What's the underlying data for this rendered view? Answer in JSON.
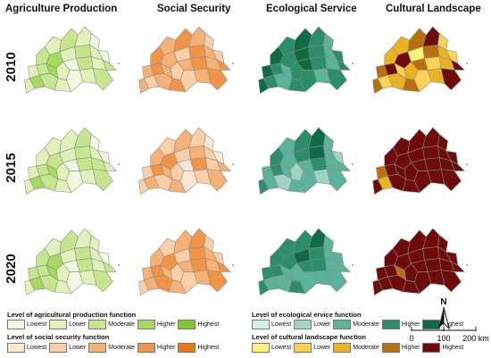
{
  "columns": [
    {
      "title": "Agriculture  Production",
      "key": "agri"
    },
    {
      "title": "Social Security",
      "key": "social"
    },
    {
      "title": "Ecological Service",
      "key": "eco"
    },
    {
      "title": "Cultural Landscape",
      "key": "cult"
    }
  ],
  "years": [
    "2010",
    "2015",
    "2020"
  ],
  "palettes": {
    "agri": [
      "#f2f8df",
      "#e2f1bb",
      "#c6e58c",
      "#a7d85f",
      "#84c630"
    ],
    "social": [
      "#fde9d2",
      "#f9cfa7",
      "#f5b176",
      "#f19447",
      "#ec7514"
    ],
    "eco": [
      "#d7efe9",
      "#9fd3c5",
      "#5bb39b",
      "#2b8d6a",
      "#0f6b43"
    ],
    "cult": [
      "#fff27a",
      "#fad255",
      "#e9b322",
      "#b8700f",
      "#6e0b0b"
    ]
  },
  "legends": [
    {
      "title": "Level of agricultural production function",
      "key": "agri",
      "labels": [
        "Lowest",
        "Lower",
        "Moderate",
        "Higher",
        "Highest"
      ]
    },
    {
      "title": "Level of ecological ervice function",
      "key": "eco",
      "labels": [
        "Lowest",
        "Lower",
        "Moderate",
        "Higher",
        "Highest"
      ]
    },
    {
      "title": "Level of social security function",
      "key": "social",
      "labels": [
        "Lowest",
        "Lower",
        "Moderate",
        "Higher",
        "Highest"
      ]
    },
    {
      "title": "Level of cultural landscape function",
      "key": "cult",
      "labels": [
        "Lowest",
        "Lower",
        "Moderate",
        "Higher",
        "Highest"
      ]
    }
  ],
  "north_arrow": "N",
  "scale_bar": {
    "ticks": [
      "0",
      "100",
      "200 km"
    ]
  },
  "map_levels": {
    "agri": [
      [
        1,
        2,
        1,
        0,
        2,
        3,
        1,
        2,
        1,
        0,
        1,
        2,
        3,
        1,
        0,
        2,
        1,
        2,
        1,
        3,
        2,
        1,
        0,
        1,
        2
      ],
      [
        1,
        1,
        2,
        0,
        1,
        2,
        1,
        2,
        1,
        0,
        1,
        2,
        3,
        1,
        0,
        2,
        2,
        1,
        1,
        3,
        2,
        1,
        0,
        1,
        2
      ],
      [
        1,
        2,
        1,
        1,
        2,
        3,
        1,
        2,
        1,
        0,
        2,
        2,
        3,
        1,
        0,
        2,
        1,
        2,
        1,
        3,
        2,
        1,
        0,
        1,
        2
      ]
    ],
    "social": [
      [
        2,
        3,
        2,
        1,
        3,
        2,
        1,
        3,
        2,
        1,
        2,
        3,
        2,
        1,
        2,
        3,
        2,
        3,
        2,
        1,
        2,
        3,
        1,
        2,
        3
      ],
      [
        1,
        2,
        1,
        0,
        2,
        3,
        1,
        2,
        1,
        0,
        1,
        3,
        2,
        1,
        0,
        3,
        1,
        2,
        1,
        2,
        1,
        2,
        0,
        1,
        2
      ],
      [
        1,
        2,
        3,
        1,
        2,
        3,
        1,
        3,
        2,
        1,
        2,
        3,
        2,
        1,
        2,
        3,
        2,
        3,
        1,
        2,
        3,
        2,
        1,
        2,
        3
      ]
    ],
    "eco": [
      [
        3,
        4,
        3,
        2,
        4,
        3,
        4,
        3,
        2,
        3,
        4,
        3,
        2,
        3,
        4,
        3,
        2,
        3,
        4,
        3,
        2,
        3,
        3,
        2,
        3
      ],
      [
        2,
        3,
        4,
        2,
        3,
        2,
        3,
        4,
        2,
        1,
        2,
        3,
        2,
        1,
        2,
        3,
        2,
        2,
        3,
        2,
        1,
        2,
        2,
        1,
        2
      ],
      [
        3,
        3,
        4,
        2,
        3,
        3,
        4,
        3,
        2,
        2,
        3,
        3,
        2,
        2,
        3,
        3,
        2,
        2,
        3,
        2,
        2,
        3,
        2,
        2,
        2
      ]
    ],
    "cult": [
      [
        2,
        3,
        4,
        1,
        2,
        4,
        0,
        3,
        2,
        1,
        3,
        4,
        1,
        2,
        3,
        1,
        2,
        4,
        3,
        1,
        2,
        3,
        1,
        2,
        4
      ],
      [
        4,
        4,
        4,
        4,
        4,
        4,
        4,
        4,
        4,
        4,
        3,
        4,
        4,
        4,
        4,
        4,
        4,
        4,
        4,
        2,
        4,
        4,
        4,
        4,
        4
      ],
      [
        4,
        4,
        4,
        4,
        4,
        4,
        4,
        4,
        4,
        4,
        4,
        4,
        3,
        4,
        4,
        4,
        4,
        4,
        4,
        4,
        4,
        4,
        4,
        4,
        4
      ]
    ]
  }
}
